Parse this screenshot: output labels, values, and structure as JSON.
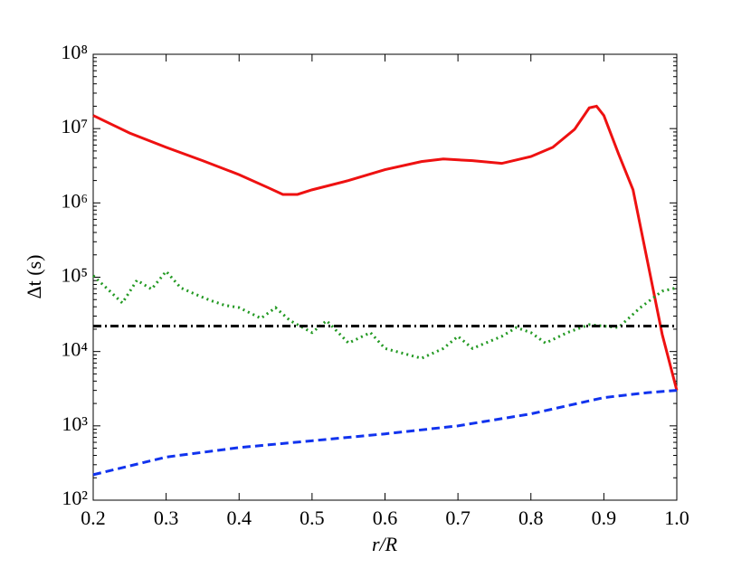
{
  "chart_data": {
    "type": "line",
    "log_y": true,
    "x_label": "r/R",
    "y_label": "Δt (s)",
    "xlim": [
      0.2,
      1.0
    ],
    "xticks": [
      0.2,
      0.3,
      0.4,
      0.5,
      0.6,
      0.7,
      0.8,
      0.9,
      {
        "value": 1,
        "label": "1.0"
      }
    ],
    "ylim": [
      100,
      100000000
    ],
    "yticks": [
      {
        "value": 100,
        "label": "10²"
      },
      {
        "value": 1000,
        "label": "10³"
      },
      {
        "value": 10000,
        "label": "10⁴"
      },
      {
        "value": 100000,
        "label": "10⁵"
      },
      {
        "value": 1000000,
        "label": "10⁶"
      },
      {
        "value": 10000000,
        "label": "10⁷"
      },
      {
        "value": 100000000,
        "label": "10⁸"
      }
    ],
    "series": [
      {
        "color": "#ee1111",
        "linestyle": "solid",
        "x": [
          0.2,
          0.25,
          0.3,
          0.35,
          0.4,
          0.44,
          0.46,
          0.48,
          0.5,
          0.55,
          0.6,
          0.65,
          0.68,
          0.72,
          0.76,
          0.8,
          0.83,
          0.86,
          0.88,
          0.89,
          0.9,
          0.92,
          0.94,
          0.96,
          0.98,
          1.0
        ],
        "values": [
          15000000,
          8700000,
          5600000,
          3700000,
          2400000,
          1600000,
          1300000,
          1300000,
          1500000,
          2000000,
          2800000,
          3600000,
          3900000,
          3700000,
          3400000,
          4200000,
          5600000,
          9800000,
          19000000,
          20000000,
          15000000,
          4600000,
          1500000,
          160000,
          17000,
          3000
        ]
      },
      {
        "color": "#229922",
        "linestyle": "dotted",
        "x": [
          0.2,
          0.22,
          0.24,
          0.26,
          0.28,
          0.3,
          0.32,
          0.34,
          0.36,
          0.38,
          0.4,
          0.43,
          0.45,
          0.47,
          0.5,
          0.52,
          0.55,
          0.58,
          0.6,
          0.65,
          0.68,
          0.7,
          0.72,
          0.76,
          0.78,
          0.8,
          0.82,
          0.85,
          0.88,
          0.9,
          0.92,
          0.95,
          0.98,
          1.0
        ],
        "values": [
          105000,
          69000,
          45000,
          91000,
          69000,
          120000,
          72000,
          59000,
          49000,
          42000,
          39000,
          28000,
          39000,
          26000,
          18000,
          26000,
          13000,
          18000,
          11000,
          8100,
          11000,
          16000,
          11000,
          16000,
          21000,
          18000,
          13000,
          18000,
          23000,
          22000,
          21000,
          39000,
          65000,
          72000
        ]
      },
      {
        "color": "#000000",
        "linestyle": "dashdot",
        "x": [
          0.2,
          1.0
        ],
        "values": [
          22000,
          22000
        ]
      },
      {
        "color": "#1133ee",
        "linestyle": "dashed",
        "x": [
          0.2,
          0.3,
          0.4,
          0.5,
          0.6,
          0.7,
          0.8,
          0.9,
          0.96,
          1.0
        ],
        "values": [
          220,
          380,
          510,
          630,
          780,
          1000,
          1450,
          2400,
          2800,
          3000
        ]
      }
    ]
  }
}
